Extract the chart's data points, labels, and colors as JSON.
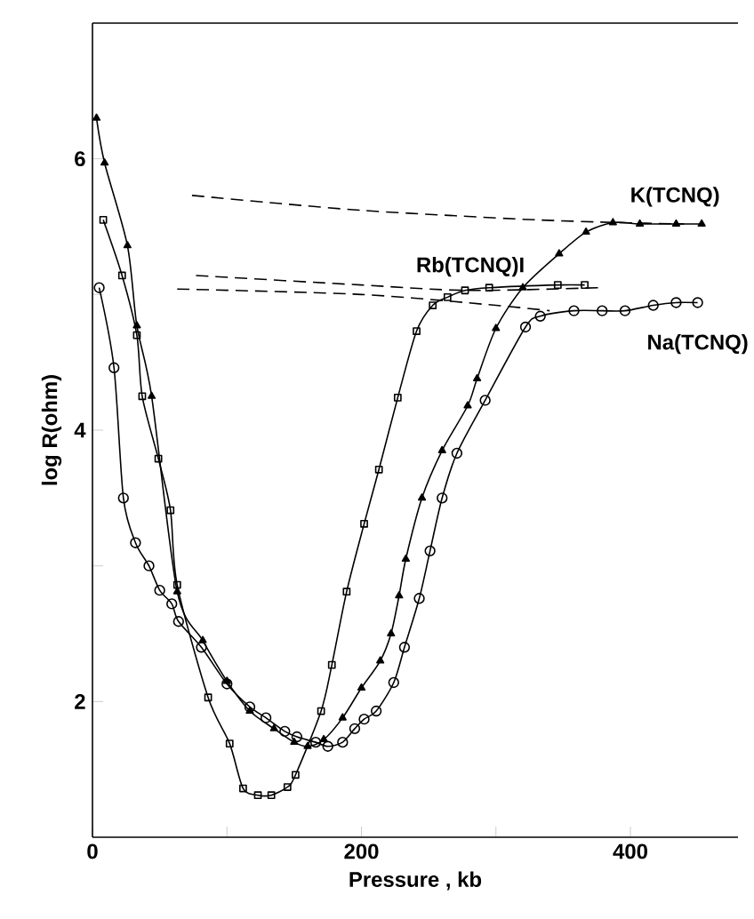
{
  "chart_data": {
    "type": "line",
    "xlabel": "Pressure , kb",
    "ylabel": "log R(ohm)",
    "xlim": [
      0,
      480
    ],
    "ylim": [
      1,
      7
    ],
    "xticks": [
      0,
      {
        "value": 100,
        "label": null
      },
      200,
      {
        "value": 300,
        "label": null
      },
      400
    ],
    "yticks": [
      2,
      {
        "value": 3,
        "label": null
      },
      4,
      {
        "value": 5,
        "label": null
      },
      6
    ],
    "grid": false,
    "series": [
      {
        "name": "K(TCNQ)",
        "color": "#000000",
        "marker": "triangle",
        "line_style": "solid",
        "x": [
          3,
          9,
          26,
          33,
          44,
          63,
          82,
          100,
          117,
          135,
          150,
          160,
          172,
          186,
          200,
          214,
          222,
          228,
          233,
          245,
          260,
          279,
          286,
          300,
          320,
          347,
          367,
          387,
          407,
          434,
          453
        ],
        "values": [
          6.3,
          5.97,
          5.36,
          4.77,
          4.25,
          2.81,
          2.45,
          2.15,
          1.93,
          1.8,
          1.7,
          1.67,
          1.72,
          1.88,
          2.1,
          2.3,
          2.5,
          2.78,
          3.05,
          3.5,
          3.85,
          4.18,
          4.38,
          4.75,
          5.05,
          5.3,
          5.46,
          5.53,
          5.52,
          5.52,
          5.52
        ]
      },
      {
        "name": "Rb(TCNQ)I",
        "color": "#000000",
        "marker": "square",
        "line_style": "solid",
        "x": [
          8,
          22,
          33,
          37,
          49,
          58,
          63,
          86,
          102,
          112,
          123,
          133,
          145,
          151,
          170,
          178,
          189,
          202,
          213,
          227,
          241,
          253,
          264,
          277,
          295,
          346,
          366
        ],
        "values": [
          5.55,
          5.14,
          4.7,
          4.25,
          3.79,
          3.41,
          2.86,
          2.03,
          1.69,
          1.36,
          1.31,
          1.31,
          1.37,
          1.46,
          1.93,
          2.27,
          2.81,
          3.31,
          3.71,
          4.24,
          4.73,
          4.92,
          4.98,
          5.03,
          5.05,
          5.07,
          5.07
        ]
      },
      {
        "name": "Na(TCNQ)",
        "color": "#000000",
        "marker": "circle",
        "line_style": "solid",
        "x": [
          5,
          16,
          23,
          32,
          42,
          50,
          59,
          64,
          81,
          100,
          117,
          129,
          143,
          152,
          166,
          175,
          186,
          195,
          202,
          211,
          224,
          232,
          243,
          251,
          260,
          271,
          292,
          322,
          333,
          358,
          379,
          396,
          417,
          434,
          450
        ],
        "values": [
          5.05,
          4.46,
          3.5,
          3.17,
          3.0,
          2.82,
          2.72,
          2.59,
          2.4,
          2.13,
          1.96,
          1.88,
          1.78,
          1.74,
          1.7,
          1.67,
          1.7,
          1.8,
          1.87,
          1.93,
          2.14,
          2.4,
          2.76,
          3.11,
          3.5,
          3.83,
          4.22,
          4.76,
          4.84,
          4.88,
          4.88,
          4.88,
          4.92,
          4.94,
          4.94
        ]
      },
      {
        "color": "#000000",
        "marker": "none",
        "line_style": "dashed",
        "x": [
          74,
          140,
          200,
          270,
          330,
          390,
          440
        ],
        "values": [
          5.73,
          5.67,
          5.62,
          5.58,
          5.55,
          5.53,
          5.52
        ]
      },
      {
        "color": "#000000",
        "marker": "none",
        "line_style": "dashed",
        "x": [
          77,
          200,
          280,
          376
        ],
        "values": [
          5.14,
          5.07,
          5.03,
          5.05
        ]
      },
      {
        "color": "#000000",
        "marker": "none",
        "line_style": "dashed",
        "x": [
          63,
          200,
          300,
          340
        ],
        "values": [
          5.04,
          5.0,
          4.92,
          4.88
        ]
      }
    ]
  }
}
